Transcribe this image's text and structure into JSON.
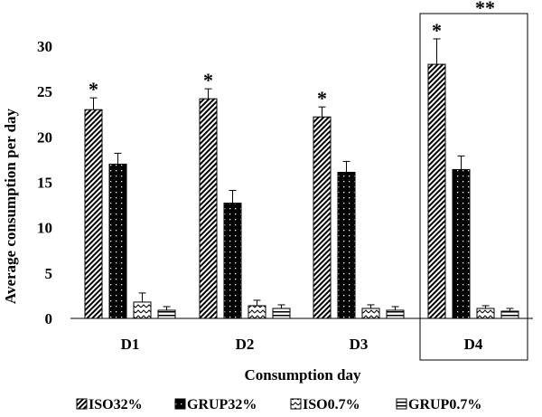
{
  "chart_data": {
    "type": "bar",
    "title": "",
    "xlabel": "Consumption day",
    "ylabel": "Average consumption per day",
    "ylim": [
      0,
      30
    ],
    "yticks": [
      0,
      5,
      10,
      15,
      20,
      25,
      30
    ],
    "categories": [
      "D1",
      "D2",
      "D3",
      "D4"
    ],
    "series": [
      {
        "name": "ISO32%",
        "pattern": "diagonal-hatch",
        "values": [
          23.0,
          24.2,
          22.2,
          28.0
        ],
        "errors": [
          1.3,
          1.1,
          1.1,
          2.8
        ]
      },
      {
        "name": "GRUP32%",
        "pattern": "black-dotted",
        "values": [
          17.0,
          12.7,
          16.1,
          16.4
        ],
        "errors": [
          1.2,
          1.4,
          1.2,
          1.5
        ]
      },
      {
        "name": "ISO0.7%",
        "pattern": "zigzag",
        "values": [
          1.8,
          1.4,
          1.1,
          1.1
        ],
        "errors": [
          1.0,
          0.6,
          0.4,
          0.3
        ]
      },
      {
        "name": "GRUP0.7%",
        "pattern": "horizontal-lines",
        "values": [
          0.9,
          1.1,
          0.9,
          0.8
        ],
        "errors": [
          0.4,
          0.4,
          0.4,
          0.3
        ]
      }
    ],
    "annotations": [
      {
        "category": "D1",
        "series": "ISO32%",
        "text": "*"
      },
      {
        "category": "D2",
        "series": "ISO32%",
        "text": "*"
      },
      {
        "category": "D3",
        "series": "ISO32%",
        "text": "*"
      },
      {
        "category": "D4",
        "series": "ISO32%",
        "text": "*"
      },
      {
        "category": "D4",
        "series": "box",
        "text": "**"
      }
    ],
    "highlight_box_category": "D4",
    "legend_position": "bottom",
    "grid": false
  }
}
